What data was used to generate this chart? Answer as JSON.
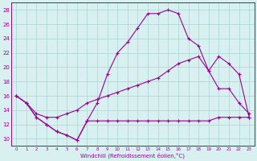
{
  "line1_x": [
    0,
    1,
    2,
    3,
    4,
    5,
    6,
    7,
    8,
    9,
    10,
    11,
    12,
    13,
    14,
    15,
    16,
    17,
    18,
    19,
    20,
    21,
    22,
    23
  ],
  "line1_y": [
    16,
    15,
    13.5,
    13,
    13,
    13.5,
    14,
    15,
    15.5,
    16,
    16.5,
    17,
    17.5,
    18,
    18.5,
    19.5,
    20.5,
    21,
    21.5,
    19.5,
    21.5,
    20.5,
    19,
    13
  ],
  "line2_x": [
    0,
    1,
    2,
    3,
    4,
    5,
    6,
    7,
    8,
    9,
    10,
    11,
    12,
    13,
    14,
    15,
    16,
    17,
    18,
    19,
    20,
    21,
    22,
    23
  ],
  "line2_y": [
    16,
    15,
    13,
    12,
    11,
    10.5,
    9.8,
    12.5,
    15,
    19,
    22,
    23.5,
    25.5,
    27.5,
    27.5,
    28,
    27.5,
    24,
    23,
    19.5,
    17,
    17,
    15,
    13.5
  ],
  "line3_x": [
    0,
    1,
    2,
    3,
    4,
    5,
    6,
    7,
    8,
    9,
    10,
    11,
    12,
    13,
    14,
    15,
    16,
    17,
    18,
    19,
    20,
    21,
    22,
    23
  ],
  "line3_y": [
    16,
    15,
    13,
    12,
    11,
    10.5,
    9.8,
    12.5,
    12.5,
    12.5,
    12.5,
    12.5,
    12.5,
    12.5,
    12.5,
    12.5,
    12.5,
    12.5,
    12.5,
    12.5,
    13,
    13,
    13,
    13
  ],
  "line_color": "#990099",
  "bg_color": "#d8f0f0",
  "grid_color": "#aad4d4",
  "xlabel": "Windchill (Refroidissement éolien,°C)",
  "ylim": [
    9,
    29
  ],
  "xlim": [
    -0.5,
    23.5
  ],
  "yticks": [
    10,
    12,
    14,
    16,
    18,
    20,
    22,
    24,
    26,
    28
  ],
  "xticks": [
    0,
    1,
    2,
    3,
    4,
    5,
    6,
    7,
    8,
    9,
    10,
    11,
    12,
    13,
    14,
    15,
    16,
    17,
    18,
    19,
    20,
    21,
    22,
    23
  ]
}
